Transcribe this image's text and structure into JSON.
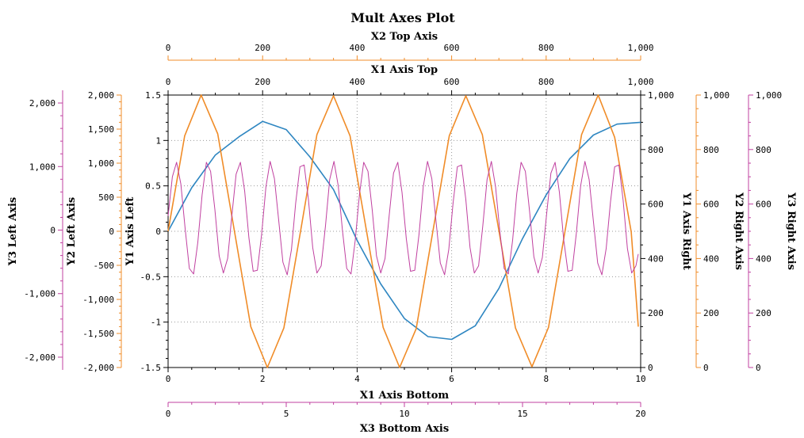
{
  "chart_data": {
    "type": "line",
    "title": "Mult Axes Plot",
    "grid": true,
    "axes": {
      "x1_bottom": {
        "label": "X1 Axis Bottom",
        "range": [
          0,
          10
        ],
        "ticks": [
          "0",
          "2",
          "4",
          "6",
          "8",
          "10"
        ],
        "color": "#000000"
      },
      "x1_top": {
        "label": "X1 Axis Top",
        "range": [
          0,
          1000
        ],
        "ticks": [
          "0",
          "200",
          "400",
          "600",
          "800",
          "1,000"
        ],
        "color": "#000000"
      },
      "x2_top": {
        "label": "X2 Top Axis",
        "range": [
          0,
          1000
        ],
        "ticks": [
          "0",
          "200",
          "400",
          "600",
          "800",
          "1,000"
        ],
        "color": "#f08c28"
      },
      "x3_bottom": {
        "label": "X3 Bottom Axis",
        "range": [
          0,
          20
        ],
        "ticks": [
          "0",
          "5",
          "10",
          "15",
          "20"
        ],
        "color": "#c040a0"
      },
      "y1_left": {
        "label": "Y1 Axis Left",
        "range": [
          -1.5,
          1.5
        ],
        "ticks": [
          "-1.5",
          "-1",
          "-0.5",
          "0",
          "0.5",
          "1",
          "1.5"
        ],
        "color": "#000000"
      },
      "y1_right": {
        "label": "Y1 Axis Right",
        "range": [
          0,
          1000
        ],
        "ticks": [
          "0",
          "200",
          "400",
          "600",
          "800",
          "1,000"
        ],
        "color": "#000000"
      },
      "y2_left": {
        "label": "Y2 Left Axis",
        "range": [
          -2000,
          2000
        ],
        "ticks": [
          "-2,000",
          "-1,500",
          "-1,000",
          "-500",
          "0",
          "500",
          "1,000",
          "1,500",
          "2,000"
        ],
        "color": "#f08c28"
      },
      "y2_right": {
        "label": "Y2 Right Axis",
        "range": [
          0,
          1000
        ],
        "ticks": [
          "0",
          "200",
          "400",
          "600",
          "800",
          "1,000"
        ],
        "color": "#f08c28"
      },
      "y3_left": {
        "label": "Y3 Left Axis",
        "range": [
          -2200,
          2200
        ],
        "ticks": [
          "-2,000",
          "-1,000",
          "0",
          "1,000",
          "2,000"
        ],
        "color": "#c040a0"
      },
      "y3_right": {
        "label": "Y3 Right Axis",
        "range": [
          0,
          1000
        ],
        "ticks": [
          "0",
          "200",
          "400",
          "600",
          "800",
          "1,000"
        ],
        "color": "#c040a0"
      }
    },
    "series": [
      {
        "color": "#2e86c1",
        "x_axis": "x1_bottom",
        "y_axis": "y1_left",
        "x": [
          0,
          0.5,
          1,
          1.5,
          2,
          2.5,
          3,
          3.5,
          4,
          4.5,
          5,
          5.5,
          6,
          6.5,
          7,
          7.5,
          8,
          8.5,
          9,
          9.5,
          10
        ],
        "y": [
          0,
          0.48,
          0.84,
          1.04,
          1.21,
          1.12,
          0.82,
          0.46,
          -0.1,
          -0.58,
          -0.96,
          -1.16,
          -1.19,
          -1.04,
          -0.63,
          -0.08,
          0.4,
          0.8,
          1.06,
          1.18,
          1.2
        ]
      },
      {
        "color": "#f08c28",
        "x_axis": "x1_bottom",
        "y_axis": "y2_left",
        "x": [
          0,
          0.35,
          0.7,
          1.05,
          1.4,
          1.75,
          2.1,
          2.45,
          2.8,
          3.15,
          3.5,
          3.85,
          4.2,
          4.55,
          4.9,
          5.25,
          5.6,
          5.95,
          6.3,
          6.65,
          7.0,
          7.35,
          7.7,
          8.05,
          8.4,
          8.75,
          9.1,
          9.45,
          9.8,
          9.95
        ],
        "y": [
          0,
          1400,
          2000,
          1430,
          20,
          -1400,
          -2000,
          -1420,
          -10,
          1420,
          1990,
          1400,
          0,
          -1410,
          -2000,
          -1430,
          -10,
          1400,
          1990,
          1420,
          10,
          -1420,
          -1990,
          -1410,
          0,
          1420,
          2000,
          1380,
          -10,
          -1400
        ]
      },
      {
        "color": "#c040a0",
        "x_axis": "x1_bottom",
        "y_axis": "y1_left",
        "x": [
          0,
          0.09,
          0.18,
          0.27,
          0.36,
          0.45,
          0.54,
          0.63,
          0.72,
          0.81,
          0.9,
          0.99,
          1.08,
          1.17,
          1.26,
          1.35,
          1.44,
          1.53,
          1.62,
          1.71,
          1.8,
          1.89,
          1.98,
          2.07,
          2.16,
          2.25,
          2.34,
          2.43,
          2.52,
          2.61,
          2.7,
          2.79,
          2.88,
          2.97,
          3.06,
          3.15,
          3.24,
          3.33,
          3.42,
          3.51,
          3.6,
          3.69,
          3.78,
          3.87,
          3.96,
          4.05,
          4.14,
          4.23,
          4.32,
          4.41,
          4.5,
          4.59,
          4.68,
          4.77,
          4.86,
          4.95,
          5.04,
          5.13,
          5.22,
          5.31,
          5.4,
          5.49,
          5.58,
          5.67,
          5.76,
          5.85,
          5.94,
          6.03,
          6.12,
          6.21,
          6.3,
          6.39,
          6.48,
          6.57,
          6.66,
          6.75,
          6.84,
          6.93,
          7.02,
          7.11,
          7.2,
          7.29,
          7.38,
          7.47,
          7.56,
          7.65,
          7.74,
          7.83,
          7.92,
          8.01,
          8.1,
          8.19,
          8.28,
          8.37,
          8.46,
          8.55,
          8.64,
          8.73,
          8.82,
          8.91,
          9.0,
          9.09,
          9.18,
          9.27,
          9.36,
          9.45,
          9.54,
          9.63,
          9.72,
          9.81,
          9.9,
          9.95
        ],
        "y": [
          0.17,
          0.6,
          0.76,
          0.52,
          0.03,
          -0.41,
          -0.47,
          -0.12,
          0.4,
          0.76,
          0.66,
          0.24,
          -0.27,
          -0.46,
          -0.3,
          0.18,
          0.63,
          0.76,
          0.44,
          -0.07,
          -0.44,
          -0.43,
          -0.03,
          0.49,
          0.77,
          0.58,
          0.12,
          -0.34,
          -0.48,
          -0.2,
          0.31,
          0.71,
          0.73,
          0.35,
          -0.18,
          -0.46,
          -0.38,
          0.06,
          0.57,
          0.77,
          0.5,
          0.01,
          -0.41,
          -0.47,
          -0.1,
          0.41,
          0.76,
          0.66,
          0.23,
          -0.27,
          -0.46,
          -0.3,
          0.18,
          0.64,
          0.76,
          0.43,
          -0.08,
          -0.44,
          -0.43,
          -0.03,
          0.49,
          0.77,
          0.58,
          0.11,
          -0.35,
          -0.48,
          -0.2,
          0.31,
          0.71,
          0.73,
          0.35,
          -0.18,
          -0.46,
          -0.38,
          0.06,
          0.57,
          0.77,
          0.49,
          0.0,
          -0.41,
          -0.47,
          -0.1,
          0.42,
          0.76,
          0.66,
          0.22,
          -0.28,
          -0.46,
          -0.29,
          0.19,
          0.64,
          0.76,
          0.43,
          -0.09,
          -0.44,
          -0.43,
          -0.02,
          0.5,
          0.77,
          0.57,
          0.11,
          -0.35,
          -0.48,
          -0.19,
          0.32,
          0.71,
          0.73,
          0.34,
          -0.19,
          -0.46,
          -0.38,
          -0.25
        ]
      }
    ]
  }
}
